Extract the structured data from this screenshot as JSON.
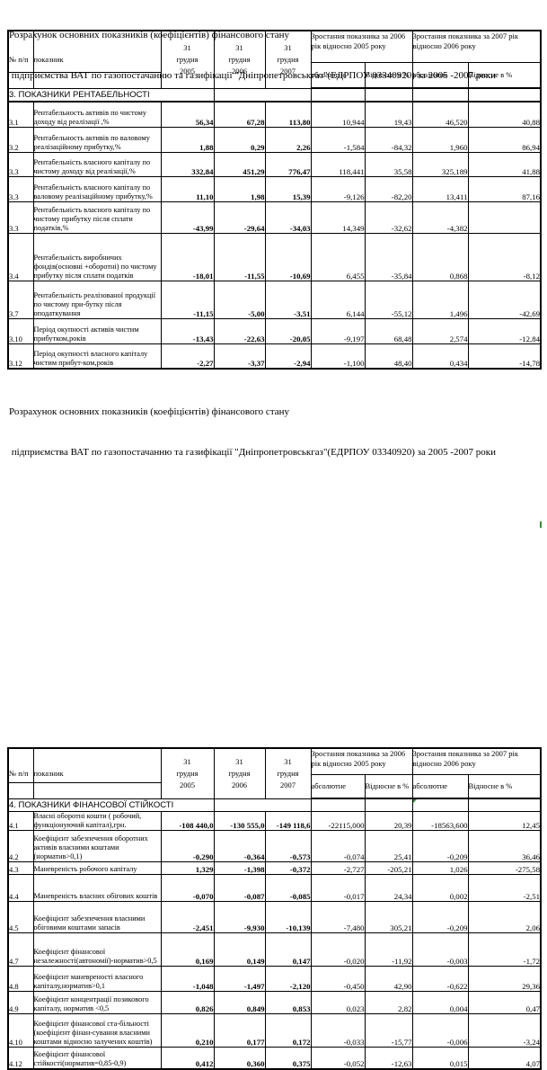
{
  "caption": {
    "line1": "Розрахунок основних показників (коефіцієнтів) фінансового стану",
    "line2": " підприємства ВАТ по газопостачанню та газифікації \"Дніпропетровськгаз\"(ЕДРПОУ 03340920) за 2005 -2007 роки"
  },
  "header": {
    "col_num": "№ п/п",
    "col_indicator": "показник",
    "dates": [
      [
        "31",
        "грудня",
        "2005"
      ],
      [
        "31",
        "грудня",
        "2006"
      ],
      [
        "31",
        "грудня",
        "2007"
      ]
    ],
    "group_2006": "Зростання показника за 2006 рік відносно 2005 року",
    "group_2007": "Зростання показника за 2007 рік відносно 2006 року",
    "sub_absolute": "абсолютне",
    "sub_relative": "Відносне в %"
  },
  "colors": {
    "marker_green": "#2f8f2f",
    "border_black": "#000000"
  },
  "tables": [
    {
      "id": "profitability",
      "section": "3. ПОКАЗНИКИ РЕНТАБЕЛЬНОСТІ",
      "section_marker": false,
      "rows": [
        {
          "num": "3.1",
          "label": "Рентабельность активів по чистому доходу від реалізації ,%",
          "values": [
            "56,34",
            "67,28",
            "113,80",
            "10,944",
            "19,43",
            "46,520",
            "40,88"
          ],
          "marker": false
        },
        {
          "num": "3.2",
          "label": "Рентабельность активів по валовому реалізаційному прибутку,%",
          "values": [
            "1,88",
            "0,29",
            "2,26",
            "-1,584",
            "-84,32",
            "1,960",
            "86,94"
          ],
          "marker": false
        },
        {
          "num": "3.3",
          "label": "Рентабельність власного капіталу по чистому доходу від реалізації,%",
          "values": [
            "332,84",
            "451,29",
            "776,47",
            "118,441",
            "35,58",
            "325,189",
            "41,88"
          ],
          "marker": false
        },
        {
          "num": "3.3",
          "label": "Рентабельність власного капіталу по валовому реалізаційному прибутку,%",
          "values": [
            "11,10",
            "1,98",
            "15,39",
            "-9,126",
            "-82,20",
            "13,411",
            "87,16"
          ],
          "marker": false
        },
        {
          "num": "3.3",
          "label": "Рентабельність власного капіталу по чистому прибутку після сплати податків,%",
          "values": [
            "-43,99",
            "-29,64",
            "-34,03",
            "14,349",
            "-32,62",
            "-4,382",
            ""
          ],
          "marker": false
        },
        {
          "num": "3.4",
          "label": "Рентабельність виробничих фондів(основні +оборотні) по чистому прибутку після сплати податків",
          "values": [
            "-18,01",
            "-11,55",
            "-10,69",
            "6,455",
            "-35,84",
            "0,868",
            "-8,12"
          ],
          "marker": false
        },
        {
          "num": "3.7",
          "label": "Рентабельність реалізованої продукції по чистому при-бутку після оподаткування",
          "values": [
            "-11,15",
            "-5,00",
            "-3,51",
            "6,144",
            "-55,12",
            "1,496",
            "-42,69"
          ],
          "marker": false
        },
        {
          "num": "3.10",
          "label": "Період окупності активів чистим прибутком,років",
          "values": [
            "-13,43",
            "-22,63",
            "-20,05",
            "-9,197",
            "68,48",
            "2,574",
            "-12,84"
          ],
          "marker": false
        },
        {
          "num": "3.12",
          "label": "Період окупності власного капіталу чистим прибут-ком,років",
          "values": [
            "-2,27",
            "-3,37",
            "-2,94",
            "-1,100",
            "48,40",
            "0,434",
            "-14,78"
          ],
          "marker": false
        }
      ]
    },
    {
      "id": "financial-stability",
      "section": "4. ПОКАЗНИКИ ФІНАНСОВОЇ СТІЙКОСТІ",
      "section_marker": true,
      "rows": [
        {
          "num": "4.1",
          "label": "Власні оборотні кошти ( робочий, функціонуючий капітал),грн.",
          "values": [
            "-108 440,0",
            "-130 555,0",
            "-149 118,6",
            "-22115,000",
            "20,39",
            "-18563,600",
            "12,45"
          ],
          "marker": true
        },
        {
          "num": "4.2",
          "label": "Коефіцієнт забезпечення оборотних активів власними коштами (норматив>0,1)",
          "values": [
            "-0,290",
            "-0,364",
            "-0,573",
            "-0,074",
            "25,41",
            "-0,209",
            "36,46"
          ],
          "marker": true
        },
        {
          "num": "4.3",
          "label": "Маневреність робочого капіталу",
          "values": [
            "1,329",
            "-1,398",
            "-0,372",
            "-2,727",
            "-205,21",
            "1,026",
            "-275,58"
          ],
          "marker": true
        },
        {
          "num": "4.4",
          "label": "Маневреність власних обігових коштів",
          "values": [
            "-0,070",
            "-0,087",
            "-0,085",
            "-0,017",
            "24,34",
            "0,002",
            "-2,51"
          ],
          "marker": true
        },
        {
          "num": "4.5",
          "label": "Коефіцієнт забезпечення власними обіговими коштами запасів",
          "values": [
            "-2,451",
            "-9,930",
            "-10,139",
            "-7,480",
            "305,21",
            "-0,209",
            "2,06"
          ],
          "marker": true
        },
        {
          "num": "4.7",
          "label": "Коефіцієнт фінансової незалежності(автономії)-норматив>0,5",
          "values": [
            "0,169",
            "0,149",
            "0,147",
            "-0,020",
            "-11,92",
            "-0,003",
            "-1,72"
          ],
          "marker": true
        },
        {
          "num": "4.8",
          "label": "Коефіцієнт маневреності власного капіталу,норматив>0,1",
          "values": [
            "-1,048",
            "-1,497",
            "-2,120",
            "-0,450",
            "42,90",
            "-0,622",
            "29,36"
          ],
          "marker": true
        },
        {
          "num": "4.9",
          "label": "Коефіцієнт концентрації позикового капіталу, норматив <0,5",
          "values": [
            "0,826",
            "0,849",
            "0,853",
            "0,023",
            "2,82",
            "0,004",
            "0,47"
          ],
          "marker": true
        },
        {
          "num": "4.10",
          "label": "Коефіцієнт фінансової ста-більності (коефіцієнт фінан-сування власними коштами відносно залучених коштів)",
          "values": [
            "0,210",
            "0,177",
            "0,172",
            "-0,033",
            "-15,77",
            "-0,006",
            "-3,24"
          ],
          "marker": true
        },
        {
          "num": "4.12",
          "label": "Коефіцієнт фінансової стійкості(норматив=0,85-0,9)",
          "values": [
            "0,412",
            "0,360",
            "0,375",
            "-0,052",
            "-12,63",
            "0,015",
            "4,07"
          ],
          "marker": true
        }
      ]
    }
  ]
}
